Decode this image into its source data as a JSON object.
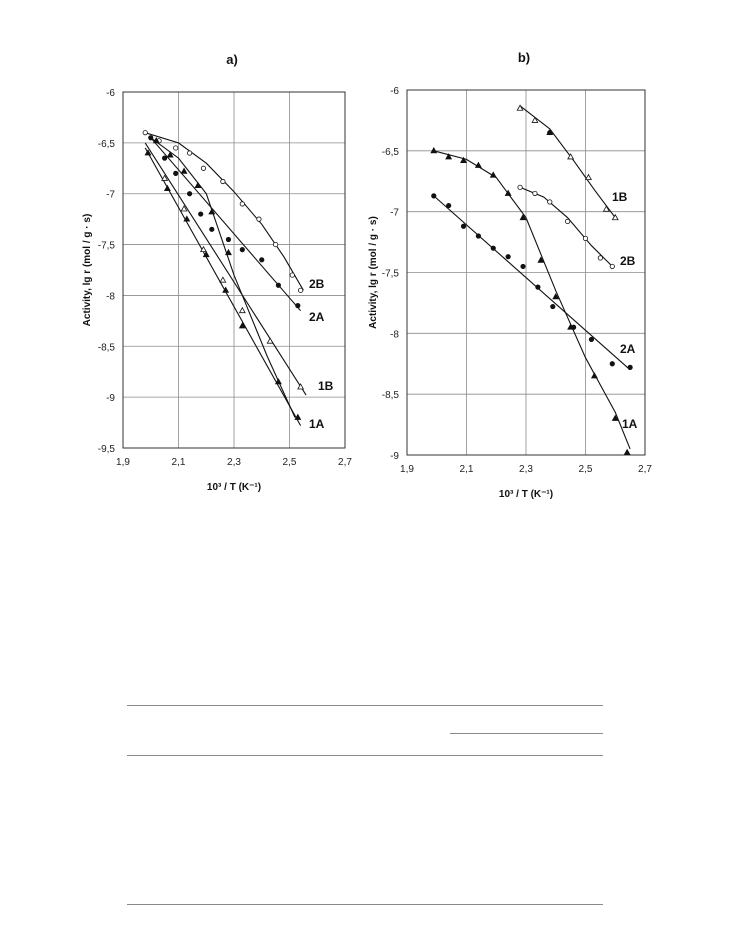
{
  "chart_data": [
    {
      "type": "scatter",
      "title": "a)",
      "xlabel": "10³ / T (K⁻¹)",
      "ylabel": "Activity, lg r (mol / g · s)",
      "xlim": [
        1.9,
        2.7
      ],
      "ylim": [
        -9.5,
        -6
      ],
      "xticks": [
        1.9,
        2.1,
        2.3,
        2.5,
        2.7
      ],
      "xtick_labels": [
        "1,9",
        "2,1",
        "2,3",
        "2,5",
        "2,7"
      ],
      "yticks": [
        -6,
        -6.5,
        -7,
        -7.5,
        -8,
        -8.5,
        -9,
        -9.5
      ],
      "ytick_labels": [
        "-6",
        "-6,5",
        "-7",
        "-7,5",
        "-8",
        "-8,5",
        "-9",
        "-9,5"
      ],
      "grid": true,
      "series": [
        {
          "name": "1A",
          "marker": "filled-triangle",
          "points": [
            [
              1.99,
              -6.6
            ],
            [
              2.06,
              -6.95
            ],
            [
              2.13,
              -7.25
            ],
            [
              2.2,
              -7.6
            ],
            [
              2.27,
              -7.95
            ],
            [
              2.33,
              -8.3
            ],
            [
              2.46,
              -8.85
            ],
            [
              2.53,
              -9.2
            ]
          ],
          "curve": [
            [
              1.98,
              -6.55
            ],
            [
              2.54,
              -9.28
            ]
          ]
        },
        {
          "name": "1B",
          "marker": "open-triangle",
          "points": [
            [
              2.05,
              -6.85
            ],
            [
              2.12,
              -7.15
            ],
            [
              2.19,
              -7.55
            ],
            [
              2.26,
              -7.85
            ],
            [
              2.33,
              -8.15
            ],
            [
              2.43,
              -8.45
            ],
            [
              2.54,
              -8.9
            ]
          ],
          "curve": [
            [
              1.98,
              -6.5
            ],
            [
              2.56,
              -8.98
            ]
          ]
        },
        {
          "name": "2A",
          "marker": "filled-circle",
          "points": [
            [
              2.0,
              -6.45
            ],
            [
              2.05,
              -6.65
            ],
            [
              2.09,
              -6.8
            ],
            [
              2.14,
              -7.0
            ],
            [
              2.18,
              -7.2
            ],
            [
              2.22,
              -7.35
            ],
            [
              2.28,
              -7.45
            ],
            [
              2.33,
              -7.55
            ],
            [
              2.4,
              -7.65
            ],
            [
              2.46,
              -7.9
            ],
            [
              2.53,
              -8.1
            ]
          ],
          "curve": [
            [
              2.0,
              -6.45
            ],
            [
              2.54,
              -8.15
            ]
          ]
        },
        {
          "name": "2B",
          "marker": "open-circle",
          "points": [
            [
              1.98,
              -6.4
            ],
            [
              2.03,
              -6.48
            ],
            [
              2.09,
              -6.55
            ],
            [
              2.14,
              -6.6
            ],
            [
              2.19,
              -6.75
            ],
            [
              2.26,
              -6.88
            ],
            [
              2.33,
              -7.1
            ],
            [
              2.39,
              -7.25
            ],
            [
              2.45,
              -7.5
            ],
            [
              2.51,
              -7.8
            ],
            [
              2.54,
              -7.95
            ]
          ],
          "curve": [
            [
              1.98,
              -6.4
            ],
            [
              2.1,
              -6.5
            ],
            [
              2.2,
              -6.7
            ],
            [
              2.3,
              -6.98
            ],
            [
              2.4,
              -7.3
            ],
            [
              2.48,
              -7.62
            ],
            [
              2.55,
              -7.95
            ]
          ]
        },
        {
          "name": "",
          "marker": "filled-triangle",
          "points": [
            [
              2.02,
              -6.48
            ],
            [
              2.07,
              -6.62
            ],
            [
              2.12,
              -6.78
            ],
            [
              2.17,
              -6.92
            ],
            [
              2.22,
              -7.18
            ],
            [
              2.28,
              -7.58
            ]
          ],
          "curve": [
            [
              2.0,
              -6.45
            ],
            [
              2.1,
              -6.65
            ],
            [
              2.2,
              -7.0
            ],
            [
              2.3,
              -7.8
            ],
            [
              2.42,
              -8.6
            ],
            [
              2.52,
              -9.2
            ]
          ]
        }
      ]
    },
    {
      "type": "scatter",
      "title": "b)",
      "xlabel": "10³ / T (K⁻¹)",
      "ylabel": "Activity, lg r (mol / g · s)",
      "xlim": [
        1.9,
        2.7
      ],
      "ylim": [
        -9,
        -6
      ],
      "xticks": [
        1.9,
        2.1,
        2.3,
        2.5,
        2.7
      ],
      "xtick_labels": [
        "1,9",
        "2,1",
        "2,3",
        "2,5",
        "2,7"
      ],
      "yticks": [
        -6,
        -6.5,
        -7,
        -7.5,
        -8,
        -8.5,
        -9
      ],
      "ytick_labels": [
        "-6",
        "-6,5",
        "-7",
        "-7,5",
        "-8",
        "-8,5",
        "-9"
      ],
      "grid": true,
      "series": [
        {
          "name": "1A",
          "marker": "filled-triangle",
          "points": [
            [
              1.99,
              -6.5
            ],
            [
              2.04,
              -6.55
            ],
            [
              2.09,
              -6.58
            ],
            [
              2.14,
              -6.62
            ],
            [
              2.19,
              -6.7
            ],
            [
              2.24,
              -6.85
            ],
            [
              2.29,
              -7.05
            ],
            [
              2.35,
              -7.4
            ],
            [
              2.4,
              -7.7
            ],
            [
              2.45,
              -7.95
            ],
            [
              2.53,
              -8.35
            ],
            [
              2.6,
              -8.7
            ],
            [
              2.64,
              -8.98
            ]
          ],
          "curve": [
            [
              1.99,
              -6.5
            ],
            [
              2.1,
              -6.57
            ],
            [
              2.2,
              -6.72
            ],
            [
              2.3,
              -7.05
            ],
            [
              2.4,
              -7.65
            ],
            [
              2.5,
              -8.2
            ],
            [
              2.6,
              -8.65
            ],
            [
              2.65,
              -8.95
            ]
          ]
        },
        {
          "name": "1B",
          "marker": "open-triangle",
          "points": [
            [
              2.28,
              -6.15
            ],
            [
              2.33,
              -6.25
            ],
            [
              2.38,
              -6.35
            ],
            [
              2.45,
              -6.55
            ],
            [
              2.51,
              -6.72
            ],
            [
              2.57,
              -6.98
            ],
            [
              2.6,
              -7.05
            ]
          ],
          "curve": [
            [
              2.28,
              -6.13
            ],
            [
              2.38,
              -6.32
            ],
            [
              2.46,
              -6.58
            ],
            [
              2.53,
              -6.82
            ],
            [
              2.6,
              -7.05
            ]
          ]
        },
        {
          "name": "",
          "marker": "filled-circle",
          "points": [
            [
              2.38,
              -6.35
            ]
          ],
          "curve": []
        },
        {
          "name": "2A",
          "marker": "filled-circle",
          "points": [
            [
              1.99,
              -6.87
            ],
            [
              2.04,
              -6.95
            ],
            [
              2.09,
              -7.12
            ],
            [
              2.14,
              -7.2
            ],
            [
              2.19,
              -7.3
            ],
            [
              2.24,
              -7.37
            ],
            [
              2.29,
              -7.45
            ],
            [
              2.34,
              -7.62
            ],
            [
              2.39,
              -7.78
            ],
            [
              2.46,
              -7.95
            ],
            [
              2.52,
              -8.05
            ],
            [
              2.59,
              -8.25
            ],
            [
              2.65,
              -8.28
            ]
          ],
          "curve": [
            [
              1.99,
              -6.87
            ],
            [
              2.65,
              -8.3
            ]
          ]
        },
        {
          "name": "2B",
          "marker": "open-circle",
          "points": [
            [
              2.28,
              -6.8
            ],
            [
              2.33,
              -6.85
            ],
            [
              2.38,
              -6.92
            ],
            [
              2.44,
              -7.08
            ],
            [
              2.5,
              -7.22
            ],
            [
              2.55,
              -7.38
            ],
            [
              2.59,
              -7.45
            ]
          ],
          "curve": [
            [
              2.28,
              -6.8
            ],
            [
              2.36,
              -6.88
            ],
            [
              2.44,
              -7.05
            ],
            [
              2.52,
              -7.28
            ],
            [
              2.59,
              -7.45
            ]
          ]
        }
      ]
    }
  ]
}
